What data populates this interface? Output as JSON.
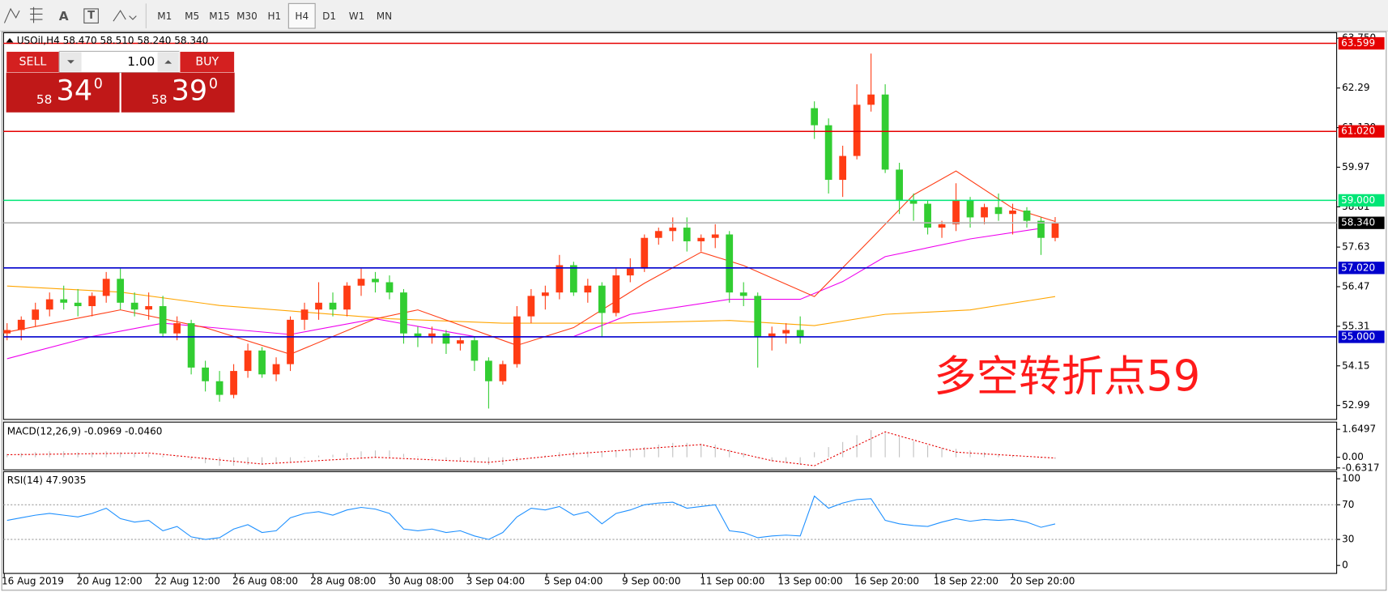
{
  "toolbar": {
    "tools": [
      "A",
      "T"
    ],
    "timeframes": [
      "M1",
      "M5",
      "M15",
      "M30",
      "H1",
      "H4",
      "D1",
      "W1",
      "MN"
    ],
    "active": "H4"
  },
  "trade_panel": {
    "sell": "SELL",
    "buy": "BUY",
    "volume": "1.00",
    "bid": {
      "big": "58",
      "main": "34",
      "sup": "0"
    },
    "ask": {
      "big": "58",
      "main": "39",
      "sup": "0"
    }
  },
  "annotation": "多空转折点59",
  "chart_data": [
    {
      "type": "candlestick",
      "title": "USOil,H4 58.470 58.510 58.240 58.340",
      "up_color": "#ff3c14",
      "down_color": "#32cd32",
      "xlim": [
        -0.25,
        93.875
      ],
      "ylim": [
        52.58,
        63.91
      ],
      "xticks": [
        {
          "value": -0.2,
          "label": "16 Aug 2019"
        },
        {
          "value": 5.1,
          "label": "20 Aug 12:00"
        },
        {
          "value": 10.6,
          "label": "22 Aug 12:00"
        },
        {
          "value": 16.1,
          "label": "26 Aug 08:00"
        },
        {
          "value": 21.6,
          "label": "28 Aug 08:00"
        },
        {
          "value": 27.1,
          "label": "30 Aug 08:00"
        },
        {
          "value": 32.6,
          "label": "3 Sep 04:00"
        },
        {
          "value": 38.1,
          "label": "5 Sep 04:00"
        },
        {
          "value": 43.6,
          "label": "9 Sep 00:00"
        },
        {
          "value": 49.1,
          "label": "11 Sep 00:00"
        },
        {
          "value": 54.6,
          "label": "13 Sep 00:00"
        },
        {
          "value": 60,
          "label": "16 Sep 20:00"
        },
        {
          "value": 65.6,
          "label": "18 Sep 22:00"
        },
        {
          "value": 71,
          "label": "20 Sep 20:00"
        }
      ],
      "yticks": [
        {
          "value": 63.75,
          "label": "63.750"
        },
        62.29,
        {
          "value": 61.13,
          "label": "61.130"
        },
        59.97,
        58.81,
        57.63,
        56.47,
        55.31,
        54.15,
        52.99
      ],
      "open": [
        55.1,
        55.2,
        55.5,
        55.8,
        56.1,
        56.0,
        55.9,
        56.2,
        56.7,
        56.0,
        55.8,
        55.9,
        55.1,
        55.4,
        54.1,
        53.7,
        53.3,
        54.0,
        54.6,
        53.9,
        54.2,
        55.5,
        55.8,
        56.0,
        55.8,
        56.5,
        56.7,
        56.6,
        56.3,
        55.1,
        55.0,
        55.1,
        54.8,
        54.9,
        54.3,
        53.7,
        54.2,
        55.6,
        56.2,
        56.3,
        57.1,
        56.3,
        56.5,
        55.7,
        56.8,
        57.0,
        57.9,
        58.1,
        58.2,
        57.8,
        57.9,
        58.0,
        56.3,
        56.2,
        55.0,
        55.1,
        55.2,
        61.7,
        61.2,
        59.6,
        60.3,
        61.8,
        62.1,
        59.9,
        59.0,
        58.9,
        58.2,
        58.3,
        59.0,
        58.5,
        58.8,
        58.6,
        58.7,
        58.4,
        57.9
      ],
      "high": [
        55.4,
        55.6,
        56.0,
        56.3,
        56.5,
        56.4,
        56.3,
        56.9,
        57.0,
        56.3,
        56.3,
        56.2,
        55.6,
        55.5,
        54.3,
        54.0,
        54.2,
        54.8,
        54.7,
        54.4,
        55.6,
        56.0,
        56.6,
        56.3,
        56.6,
        57.0,
        56.9,
        56.8,
        56.4,
        55.3,
        55.3,
        55.2,
        55.0,
        55.0,
        54.4,
        54.3,
        55.9,
        56.4,
        56.5,
        57.4,
        57.2,
        56.7,
        56.6,
        57.0,
        57.3,
        58.0,
        58.2,
        58.5,
        58.5,
        58.0,
        58.3,
        58.1,
        56.6,
        56.3,
        55.3,
        55.4,
        55.6,
        61.9,
        61.4,
        60.6,
        62.4,
        63.3,
        62.4,
        60.1,
        59.2,
        59.0,
        58.4,
        59.5,
        59.1,
        58.9,
        59.2,
        58.9,
        58.8,
        58.5,
        58.51
      ],
      "low": [
        54.9,
        54.9,
        55.3,
        55.6,
        55.8,
        55.6,
        55.6,
        56.0,
        55.8,
        55.6,
        55.5,
        55.0,
        54.9,
        53.9,
        53.4,
        53.1,
        53.2,
        53.8,
        53.8,
        53.7,
        54.0,
        55.2,
        55.5,
        55.6,
        55.6,
        56.2,
        56.3,
        56.1,
        54.8,
        54.7,
        54.8,
        54.5,
        54.6,
        54.0,
        52.9,
        53.6,
        54.1,
        55.4,
        55.8,
        56.1,
        56.2,
        56.0,
        55.0,
        55.6,
        56.6,
        56.9,
        57.7,
        57.8,
        57.5,
        57.5,
        57.6,
        56.0,
        55.9,
        54.1,
        54.6,
        54.8,
        54.8,
        60.8,
        59.2,
        59.1,
        60.2,
        61.6,
        59.8,
        58.6,
        58.4,
        58.0,
        57.9,
        58.1,
        58.2,
        58.3,
        58.4,
        58.0,
        58.2,
        57.4,
        57.8
      ],
      "close": [
        55.2,
        55.5,
        55.8,
        56.1,
        56.0,
        55.9,
        56.2,
        56.7,
        56.0,
        55.8,
        55.9,
        55.1,
        55.4,
        54.1,
        53.7,
        53.3,
        54.0,
        54.6,
        53.9,
        54.2,
        55.5,
        55.8,
        56.0,
        55.8,
        56.5,
        56.7,
        56.6,
        56.3,
        55.1,
        55.0,
        55.1,
        54.8,
        54.9,
        54.3,
        53.7,
        54.2,
        55.6,
        56.2,
        56.3,
        57.1,
        56.3,
        56.5,
        55.7,
        56.8,
        57.0,
        57.9,
        58.1,
        58.2,
        57.8,
        57.9,
        58.0,
        56.3,
        56.2,
        55.0,
        55.1,
        55.2,
        55.0,
        61.2,
        59.6,
        60.3,
        61.8,
        62.1,
        59.9,
        59.0,
        58.9,
        58.2,
        58.3,
        59.0,
        58.5,
        58.8,
        58.6,
        58.7,
        58.4,
        57.9,
        58.34
      ],
      "lines": [
        {
          "color": "#ffa500",
          "x": [
            0,
            8,
            15,
            27,
            35,
            43,
            51,
            57,
            62,
            68,
            74
          ],
          "values": [
            56.49,
            56.31,
            55.92,
            55.53,
            55.4,
            55.4,
            55.48,
            55.33,
            55.66,
            55.79,
            56.18
          ]
        },
        {
          "color": "#ee00ee",
          "x": [
            0,
            6,
            11,
            20,
            26,
            33,
            40,
            44,
            51,
            56,
            59,
            62,
            68,
            73
          ],
          "values": [
            54.36,
            55.01,
            55.4,
            55.07,
            55.53,
            55.01,
            55.01,
            55.66,
            56.1,
            56.1,
            56.62,
            57.35,
            57.87,
            58.18
          ]
        },
        {
          "color": "#ff3c14",
          "x": [
            0,
            8,
            14,
            20,
            26,
            29,
            36,
            40,
            45,
            49,
            52,
            57,
            61,
            64,
            67,
            71,
            74
          ],
          "values": [
            55.14,
            55.79,
            55.27,
            54.49,
            55.53,
            55.79,
            54.75,
            55.27,
            56.57,
            57.48,
            57.09,
            56.18,
            57.87,
            59.16,
            59.86,
            58.77,
            58.38
          ]
        }
      ],
      "levels": [
        {
          "value": 63.599,
          "label": "63.599",
          "color": "#e60000"
        },
        {
          "value": 61.02,
          "label": "61.020",
          "color": "#e60000"
        },
        {
          "value": 59,
          "label": "59.000",
          "color": "#00e676"
        },
        {
          "value": 58.34,
          "label": "58.340",
          "color": "#b4b4b4"
        },
        {
          "value": 57.02,
          "label": "57.020",
          "color": "#0000cd"
        },
        {
          "value": 55,
          "label": "55.000",
          "color": "#0000cd"
        }
      ]
    },
    {
      "type": "macd",
      "title": "MACD(12,26,9) -0.0969 -0.0460",
      "xlim": [
        -0.25,
        93.875
      ],
      "ylim": [
        -0.745,
        2.075
      ],
      "yticks": [
        1.6497,
        {
          "value": 0,
          "label": "0.00"
        },
        -0.6317
      ],
      "color": "#c0c0c0",
      "values": [
        0.2,
        0.25,
        0.3,
        0.35,
        0.35,
        0.3,
        0.3,
        0.35,
        0.3,
        0.25,
        0.2,
        0.1,
        0.05,
        -0.15,
        -0.35,
        -0.5,
        -0.5,
        -0.45,
        -0.45,
        -0.4,
        -0.25,
        -0.05,
        0.1,
        0.15,
        0.25,
        0.35,
        0.4,
        0.4,
        0.2,
        0.05,
        -0.05,
        -0.15,
        -0.2,
        -0.3,
        -0.45,
        -0.45,
        -0.25,
        -0.05,
        0.1,
        0.3,
        0.35,
        0.35,
        0.3,
        0.35,
        0.45,
        0.6,
        0.75,
        0.85,
        0.85,
        0.8,
        0.75,
        0.45,
        0.25,
        -0.05,
        -0.25,
        -0.35,
        -0.45,
        0.3,
        0.6,
        0.9,
        1.3,
        1.6,
        1.45,
        1.2,
        0.95,
        0.7,
        0.55,
        0.5,
        0.4,
        0.3,
        0.2,
        0.1,
        0.05,
        -0.05,
        -0.0969
      ],
      "signal": {
        "color": "#e60000",
        "x": [
          0,
          10,
          18,
          26,
          34,
          40,
          49,
          54,
          57,
          62,
          67,
          74
        ],
        "values": [
          0.15,
          0.25,
          -0.4,
          0.0,
          -0.3,
          0.2,
          0.75,
          -0.2,
          -0.5,
          1.5,
          0.3,
          -0.046
        ]
      }
    },
    {
      "type": "line",
      "title": "RSI(14) 47.9035",
      "xlim": [
        -0.25,
        93.875
      ],
      "ylim": [
        -9.2,
        108.2
      ],
      "yticks": [
        100,
        70,
        30,
        0
      ],
      "levels": [
        70,
        30
      ],
      "color": "#1e90ff",
      "values": [
        52,
        55,
        58,
        60,
        58,
        56,
        60,
        66,
        54,
        50,
        52,
        40,
        45,
        33,
        30,
        32,
        42,
        47,
        38,
        40,
        55,
        60,
        62,
        58,
        64,
        67,
        65,
        60,
        42,
        40,
        42,
        38,
        40,
        34,
        30,
        38,
        56,
        66,
        64,
        68,
        58,
        62,
        48,
        60,
        64,
        70,
        72,
        73,
        66,
        68,
        70,
        40,
        38,
        32,
        34,
        35,
        34,
        80,
        66,
        72,
        76,
        77,
        52,
        48,
        46,
        45,
        50,
        54,
        51,
        53,
        52,
        53,
        50,
        44,
        47.9035
      ]
    }
  ]
}
